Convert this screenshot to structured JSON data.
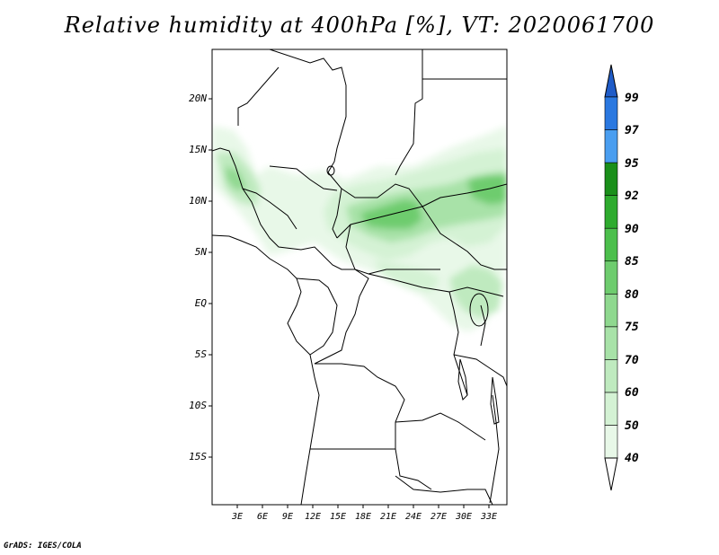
{
  "title": "Relative humidity at 400hPa [%], VT: 2020061700",
  "credit": "GrADS: IGES/COLA",
  "map": {
    "lat_ticks": [
      "20N",
      "15N",
      "10N",
      "5N",
      "EQ",
      "5S",
      "10S",
      "15S"
    ],
    "lon_ticks": [
      "3E",
      "6E",
      "9E",
      "12E",
      "15E",
      "18E",
      "21E",
      "24E",
      "27E",
      "30E",
      "33E"
    ],
    "lon_range": [
      0,
      35
    ],
    "lat_range": [
      -20,
      25
    ]
  },
  "colorbar": {
    "labels": [
      "40",
      "50",
      "60",
      "70",
      "75",
      "80",
      "85",
      "90",
      "92",
      "95",
      "97",
      "99"
    ],
    "colors": [
      "#ffffff",
      "#e8f8e8",
      "#d4f2d4",
      "#bfeabf",
      "#a8e2a8",
      "#8fd88f",
      "#6ecc6e",
      "#4cbf4c",
      "#2eab2e",
      "#1a8f1a",
      "#4a9ef0",
      "#2a78e0",
      "#1f5cc8"
    ]
  }
}
